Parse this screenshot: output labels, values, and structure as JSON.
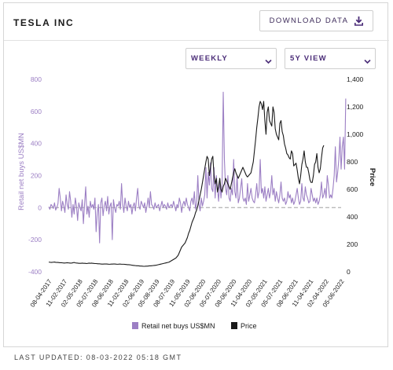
{
  "header": {
    "title": "TESLA INC",
    "download_label": "DOWNLOAD DATA"
  },
  "controls": {
    "frequency": {
      "selected": "WEEKLY"
    },
    "view": {
      "selected": "5Y VIEW"
    }
  },
  "footer": {
    "last_updated": "LAST UPDATED: 08-03-2022 05:18 GMT"
  },
  "colors": {
    "retail": "#9c7fc4",
    "price": "#1a1a1a",
    "zero_line": "#b9b9b9",
    "accent": "#4b2d78"
  },
  "chart_data": {
    "type": "line",
    "title": "",
    "x_tick_labels": [
      "08-04-2017",
      "11-02-2017",
      "02-05-2018",
      "05-07-2018",
      "08-06-2018",
      "11-02-2018",
      "02-06-2019",
      "05-08-2019",
      "08-07-2019",
      "11-05-2019",
      "02-06-2020",
      "05-07-2020",
      "08-06-2020",
      "11-04-2020",
      "02-05-2021",
      "05-07-2021",
      "08-06-2021",
      "11-04-2021",
      "02-04-2022",
      "05-06-2022"
    ],
    "y_left": {
      "label": "Retail net buys US$MN",
      "range": [
        -400,
        800
      ],
      "ticks": [
        "-400",
        "-200",
        "0",
        "200",
        "400",
        "600",
        "800"
      ]
    },
    "y_right": {
      "label": "Price",
      "range": [
        0,
        1400
      ],
      "ticks": [
        "0",
        "200",
        "400",
        "600",
        "800",
        "1,000",
        "1,200",
        "1,400"
      ]
    },
    "legend": {
      "placement": "bottom-center"
    },
    "x_range": [
      0,
      253
    ],
    "series": [
      {
        "name": "Retail net buys US$MN",
        "axis": "left",
        "values": [
          5,
          -10,
          20,
          10,
          -5,
          30,
          -15,
          0,
          25,
          120,
          60,
          -20,
          40,
          10,
          -30,
          80,
          20,
          -10,
          100,
          40,
          -60,
          20,
          -40,
          60,
          10,
          -80,
          30,
          0,
          -20,
          50,
          -100,
          20,
          130,
          -40,
          10,
          -60,
          40,
          0,
          20,
          -10,
          60,
          -150,
          -30,
          20,
          -220,
          30,
          60,
          -50,
          10,
          40,
          -20,
          70,
          -40,
          10,
          30,
          -200,
          50,
          0,
          -30,
          20,
          10,
          40,
          -10,
          150,
          20,
          -30,
          60,
          10,
          -20,
          40,
          0,
          20,
          -40,
          10,
          30,
          -20,
          60,
          120,
          10,
          -10,
          40,
          20,
          0,
          30,
          -30,
          10,
          60,
          0,
          100,
          20,
          10,
          -10,
          30,
          0,
          10,
          20,
          -20,
          10,
          40,
          0,
          20,
          10,
          -10,
          30,
          0,
          10,
          20,
          0,
          40,
          10,
          -20,
          20,
          0,
          60,
          30,
          -30,
          20,
          40,
          10,
          60,
          20,
          0,
          -20,
          40,
          60,
          20,
          100,
          -10,
          30,
          200,
          20,
          -20,
          60,
          10,
          40,
          80,
          250,
          60,
          220,
          140,
          280,
          120,
          100,
          250,
          60,
          200,
          120,
          40,
          180,
          60,
          140,
          720,
          300,
          120,
          80,
          200,
          60,
          40,
          120,
          80,
          300,
          100,
          60,
          200,
          30,
          60,
          120,
          180,
          60,
          40,
          60,
          20,
          150,
          40,
          80,
          120,
          60,
          40,
          30,
          80,
          150,
          60,
          100,
          300,
          90,
          120,
          60,
          130,
          40,
          80,
          120,
          60,
          100,
          200,
          80,
          120,
          40,
          100,
          60,
          30,
          80,
          160,
          60,
          40,
          60,
          20,
          40,
          100,
          60,
          80,
          30,
          60,
          20,
          40,
          80,
          120,
          60,
          20,
          40,
          150,
          60,
          40,
          130,
          80,
          60,
          30,
          40,
          120,
          80,
          40,
          60,
          30,
          60,
          20,
          40,
          80,
          160,
          60,
          80,
          120,
          60,
          200,
          140,
          60,
          80,
          60,
          120,
          200,
          380,
          160,
          220,
          300,
          440,
          240,
          380,
          440,
          240,
          680
        ],
        "color": "#9c7fc4"
      },
      {
        "name": "Price",
        "axis": "right",
        "values": [
          70,
          70,
          68,
          69,
          70,
          71,
          69,
          68,
          68,
          67,
          66,
          66,
          65,
          64,
          64,
          65,
          66,
          65,
          64,
          63,
          64,
          66,
          68,
          65,
          64,
          63,
          62,
          62,
          62,
          63,
          62,
          62,
          61,
          60,
          62,
          63,
          62,
          63,
          62,
          61,
          60,
          60,
          59,
          58,
          58,
          57,
          56,
          56,
          57,
          57,
          57,
          56,
          55,
          55,
          56,
          56,
          57,
          57,
          56,
          55,
          55,
          56,
          56,
          55,
          55,
          55,
          54,
          53,
          52,
          52,
          51,
          50,
          48,
          47,
          46,
          45,
          44,
          44,
          43,
          42,
          42,
          41,
          40,
          40,
          41,
          41,
          42,
          43,
          43,
          44,
          45,
          46,
          47,
          48,
          50,
          52,
          54,
          56,
          58,
          60,
          62,
          64,
          66,
          68,
          70,
          75,
          80,
          85,
          90,
          95,
          100,
          110,
          120,
          140,
          160,
          180,
          190,
          200,
          210,
          230,
          250,
          280,
          300,
          330,
          360,
          380,
          400,
          430,
          450,
          480,
          520,
          560,
          600,
          650,
          700,
          750,
          800,
          840,
          820,
          700,
          760,
          820,
          840,
          700,
          640,
          680,
          580,
          620,
          680,
          600,
          580,
          620,
          640,
          680,
          660,
          640,
          620,
          600,
          640,
          680,
          720,
          750,
          720,
          700,
          680,
          700,
          720,
          740,
          760,
          740,
          720,
          700,
          690,
          700,
          710,
          720,
          760,
          800,
          880,
          960,
          1050,
          1120,
          1200,
          1240,
          1220,
          1180,
          1240,
          1100,
          1000,
          1160,
          1200,
          1100,
          1080,
          1060,
          1200,
          1160,
          1040,
          1000,
          980,
          960,
          1080,
          1100,
          1020,
          990,
          930,
          900,
          860,
          850,
          830,
          820,
          880,
          860,
          770,
          780,
          790,
          740,
          680,
          640,
          700,
          780,
          820,
          880,
          800,
          760,
          760,
          720,
          670,
          650,
          650,
          700,
          780,
          800,
          860,
          760,
          720,
          750,
          830,
          900,
          920
        ],
        "color": "#1a1a1a"
      }
    ]
  }
}
